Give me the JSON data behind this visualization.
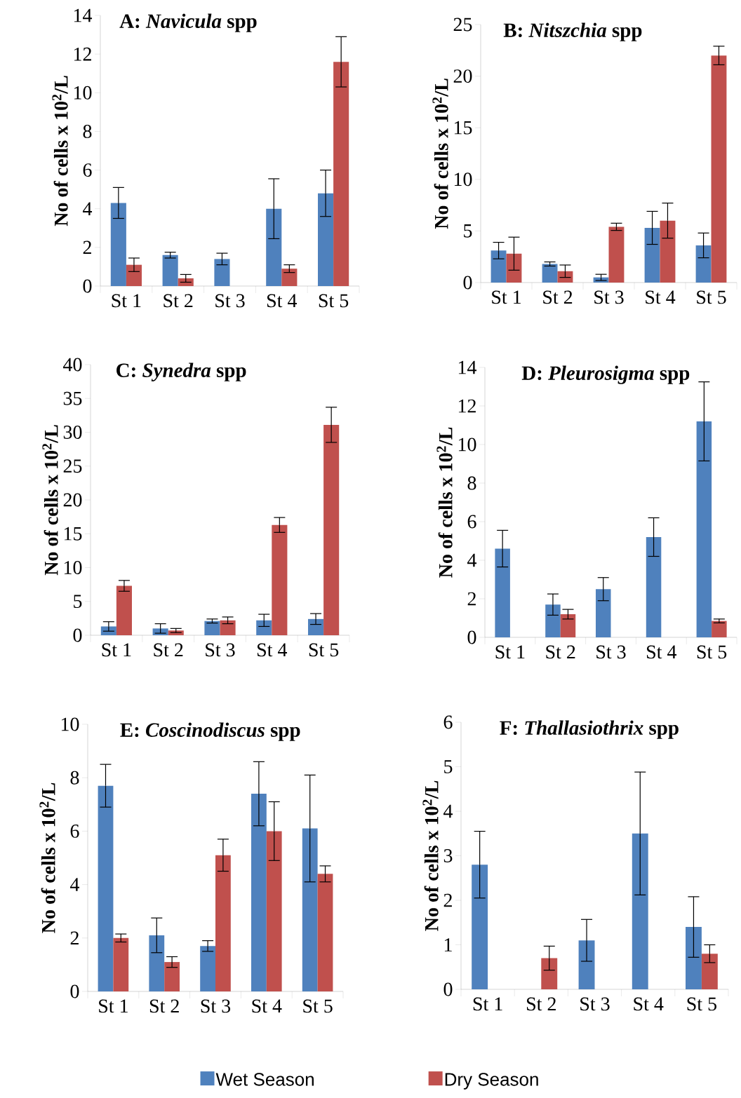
{
  "chart_data": [
    {
      "type": "bar",
      "title": "A: *Navicula* spp",
      "ylabel": "No of cells x 10$^{2}$/L",
      "categories": [
        "St 1",
        "St 2",
        "St 3",
        "St 4",
        "St 5"
      ],
      "ylim": [
        0,
        14
      ],
      "yticks": [
        0,
        2,
        4,
        6,
        8,
        10,
        12,
        14
      ],
      "series": [
        {
          "color": "#4f81bd",
          "values": [
            4.3,
            1.6,
            1.4,
            4.0,
            4.8
          ],
          "errors": [
            0.8,
            0.15,
            0.3,
            1.55,
            1.2
          ]
        },
        {
          "color": "#c0504d",
          "values": [
            1.1,
            0.4,
            null,
            0.9,
            11.6
          ],
          "errors": [
            0.35,
            0.2,
            null,
            0.2,
            1.3
          ]
        }
      ]
    },
    {
      "type": "bar",
      "title": "B: *Nitszchia* spp",
      "ylabel": "No of cells x 10$^{2}$/L",
      "categories": [
        "St 1",
        "St 2",
        "St 3",
        "St 4",
        "St 5"
      ],
      "ylim": [
        0,
        25
      ],
      "yticks": [
        0,
        5,
        10,
        15,
        20,
        25
      ],
      "series": [
        {
          "color": "#4f81bd",
          "values": [
            3.1,
            1.8,
            0.5,
            5.3,
            3.6
          ],
          "errors": [
            0.8,
            0.2,
            0.3,
            1.6,
            1.2
          ]
        },
        {
          "color": "#c0504d",
          "values": [
            2.8,
            1.1,
            5.4,
            6.0,
            22.0
          ],
          "errors": [
            1.6,
            0.6,
            0.35,
            1.7,
            0.9
          ]
        }
      ]
    },
    {
      "type": "bar",
      "title": "C: *Synedra* spp",
      "ylabel": "No of cells x 10$^{2}$/L",
      "categories": [
        "St 1",
        "St 2",
        "St 3",
        "St 4",
        "St 5"
      ],
      "ylim": [
        0,
        40
      ],
      "yticks": [
        0,
        5,
        10,
        15,
        20,
        25,
        30,
        35,
        40
      ],
      "series": [
        {
          "color": "#4f81bd",
          "values": [
            1.3,
            1.0,
            2.1,
            2.2,
            2.4
          ],
          "errors": [
            0.7,
            0.7,
            0.3,
            0.9,
            0.8
          ]
        },
        {
          "color": "#c0504d",
          "values": [
            7.3,
            0.7,
            2.2,
            16.3,
            31.1
          ],
          "errors": [
            0.8,
            0.3,
            0.5,
            1.1,
            2.6
          ]
        }
      ]
    },
    {
      "type": "bar",
      "title": "D: *Pleurosigma* spp",
      "ylabel": "No of cells x 10$^{2}$/L",
      "categories": [
        "St 1",
        "St 2",
        "St 3",
        "St 4",
        "St 5"
      ],
      "ylim": [
        0,
        14
      ],
      "yticks": [
        0,
        2,
        4,
        6,
        8,
        10,
        12,
        14
      ],
      "series": [
        {
          "color": "#4f81bd",
          "values": [
            4.6,
            1.7,
            2.5,
            5.2,
            11.2
          ],
          "errors": [
            0.95,
            0.55,
            0.6,
            1.0,
            2.05
          ]
        },
        {
          "color": "#c0504d",
          "values": [
            null,
            1.2,
            null,
            null,
            0.85
          ],
          "errors": [
            null,
            0.25,
            null,
            null,
            0.1
          ]
        }
      ]
    },
    {
      "type": "bar",
      "title": "E: *Coscinodiscus* spp",
      "ylabel": "No of cells x 10$^{2}$/L",
      "categories": [
        "St 1",
        "St 2",
        "St 3",
        "St 4",
        "St 5"
      ],
      "ylim": [
        0,
        10
      ],
      "yticks": [
        0,
        2,
        4,
        6,
        8,
        10
      ],
      "series": [
        {
          "color": "#4f81bd",
          "values": [
            7.7,
            2.1,
            1.7,
            7.4,
            6.1
          ],
          "errors": [
            0.8,
            0.65,
            0.2,
            1.2,
            2.0
          ]
        },
        {
          "color": "#c0504d",
          "values": [
            2.0,
            1.1,
            5.1,
            6.0,
            4.4
          ],
          "errors": [
            0.15,
            0.2,
            0.6,
            1.1,
            0.3
          ]
        }
      ]
    },
    {
      "type": "bar",
      "title": "F: *Thallasiothrix* spp",
      "ylabel": "No of cells x 10$^{2}$/L",
      "categories": [
        "St 1",
        "St 2",
        "St 3",
        "St 4",
        "St 5"
      ],
      "ylim": [
        0,
        6
      ],
      "yticks": [
        0,
        1,
        2,
        3,
        4,
        5,
        6
      ],
      "legend": "bottom",
      "series": [
        {
          "name": "Wet Season",
          "color": "#4f81bd",
          "values": [
            2.8,
            null,
            1.1,
            3.5,
            1.4
          ],
          "errors": [
            0.75,
            null,
            0.47,
            1.38,
            0.68
          ]
        },
        {
          "name": "Dry Season",
          "color": "#c0504d",
          "values": [
            null,
            0.7,
            null,
            null,
            0.8
          ],
          "errors": [
            null,
            0.27,
            null,
            null,
            0.2
          ]
        }
      ]
    }
  ]
}
